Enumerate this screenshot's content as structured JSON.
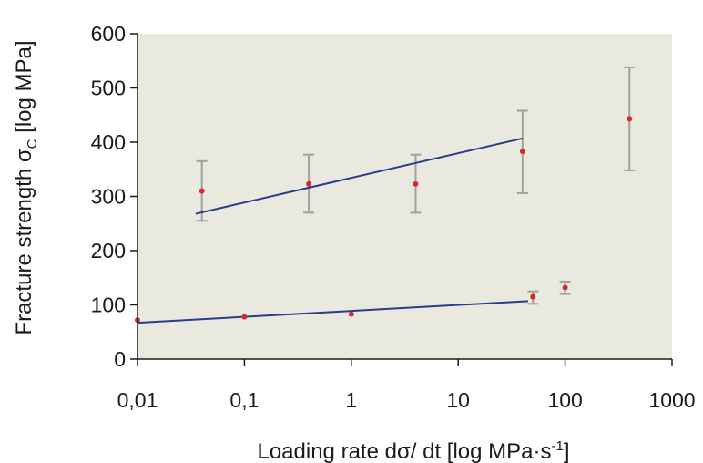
{
  "chart_data": {
    "type": "scatter",
    "xscale": "log",
    "xlim": [
      0.01,
      1000
    ],
    "ylim": [
      0,
      600
    ],
    "xlabel": {
      "main": "Loading rate dσ/ dt [log MPa·s",
      "sup": "-1",
      "end": "]"
    },
    "ylabel": {
      "main": "Fracture strength σ",
      "sub": "C",
      "end": " [log MPa]"
    },
    "x_ticks": [
      {
        "value": 0.01,
        "label": "0,01"
      },
      {
        "value": 0.1,
        "label": "0,1"
      },
      {
        "value": 1,
        "label": "1"
      },
      {
        "value": 10,
        "label": "10"
      },
      {
        "value": 100,
        "label": "100"
      },
      {
        "value": 1000,
        "label": "1000"
      }
    ],
    "y_ticks": [
      {
        "value": 0,
        "label": "0"
      },
      {
        "value": 100,
        "label": "100"
      },
      {
        "value": 200,
        "label": "200"
      },
      {
        "value": 300,
        "label": "300"
      },
      {
        "value": 400,
        "label": "400"
      },
      {
        "value": 500,
        "label": "500"
      },
      {
        "value": 600,
        "label": "600"
      }
    ],
    "series": [
      {
        "points": [
          {
            "x": 0.04,
            "y": 310,
            "err_low": 255,
            "err_high": 365
          },
          {
            "x": 0.4,
            "y": 323,
            "err_low": 270,
            "err_high": 377
          },
          {
            "x": 4,
            "y": 323,
            "err_low": 270,
            "err_high": 377
          },
          {
            "x": 40,
            "y": 383,
            "err_low": 306,
            "err_high": 458
          },
          {
            "x": 400,
            "y": 443,
            "err_low": 348,
            "err_high": 538
          }
        ],
        "fit_line": {
          "x": [
            0.035,
            40
          ],
          "y": [
            268,
            407
          ]
        }
      },
      {
        "points": [
          {
            "x": 0.01,
            "y": 72
          },
          {
            "x": 0.1,
            "y": 78
          },
          {
            "x": 1,
            "y": 83
          },
          {
            "x": 50,
            "y": 115,
            "err_low": 102,
            "err_high": 125
          },
          {
            "x": 100,
            "y": 132,
            "err_low": 120,
            "err_high": 143
          }
        ],
        "fit_line": {
          "x": [
            0.01,
            45
          ],
          "y": [
            67,
            107
          ]
        }
      }
    ],
    "colors": {
      "plot_background": "#e9e9df",
      "point": "#d42a2a",
      "fit_line": "#2e3a8c",
      "error_bar": "#a0a39a",
      "axis": "#1a1a1a"
    }
  }
}
